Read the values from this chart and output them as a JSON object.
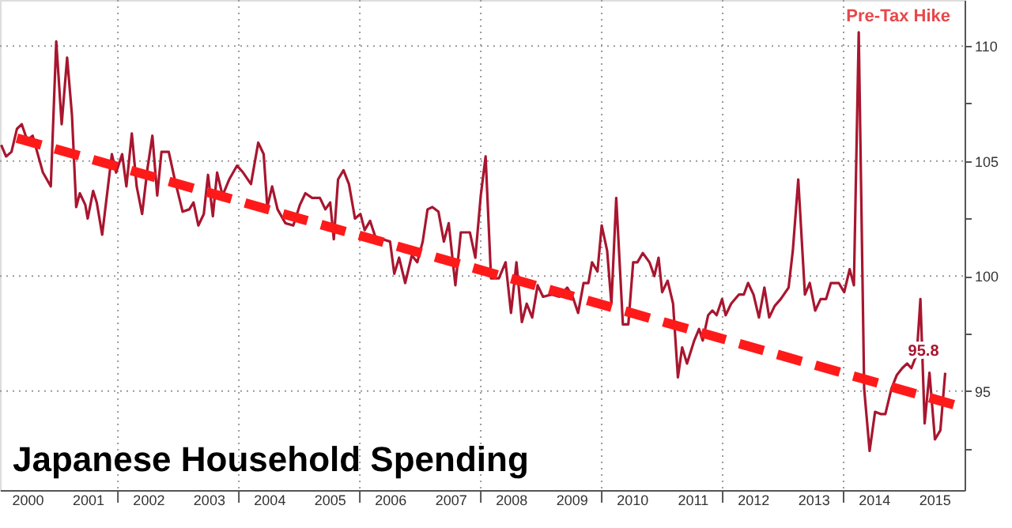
{
  "chart_data": {
    "type": "line",
    "title": "Japanese Household Spending",
    "annotations": [
      {
        "text": "Pre-Tax Hike",
        "x": 2014.25,
        "y": 110.6
      },
      {
        "text": "95.8",
        "x": 2015.68,
        "y": 95.8
      }
    ],
    "xlim": [
      2000.05,
      2016.0
    ],
    "ylim": [
      90.7,
      112
    ],
    "xticks": [
      {
        "value": 2000.5,
        "label": "2000"
      },
      {
        "value": 2001.5,
        "label": "2001"
      },
      {
        "value": 2002.5,
        "label": "2002"
      },
      {
        "value": 2003.5,
        "label": "2003"
      },
      {
        "value": 2004.5,
        "label": "2004"
      },
      {
        "value": 2005.5,
        "label": "2005"
      },
      {
        "value": 2006.5,
        "label": "2006"
      },
      {
        "value": 2007.5,
        "label": "2007"
      },
      {
        "value": 2008.5,
        "label": "2008"
      },
      {
        "value": 2009.5,
        "label": "2009"
      },
      {
        "value": 2010.5,
        "label": "2010"
      },
      {
        "value": 2011.5,
        "label": "2011"
      },
      {
        "value": 2012.5,
        "label": "2012"
      },
      {
        "value": 2013.5,
        "label": "2013"
      },
      {
        "value": 2014.5,
        "label": "2014"
      },
      {
        "value": 2015.5,
        "label": "2015"
      },
      {
        "value": 2002,
        "label": null
      },
      {
        "value": 2004,
        "label": null
      },
      {
        "value": 2006,
        "label": null
      },
      {
        "value": 2008,
        "label": null
      },
      {
        "value": 2010,
        "label": null
      },
      {
        "value": 2012,
        "label": null
      },
      {
        "value": 2014,
        "label": null
      }
    ],
    "yticks": [
      95,
      100,
      105,
      110,
      {
        "value": 92.5,
        "label": null
      },
      {
        "value": 97.5,
        "label": null
      },
      {
        "value": 102.5,
        "label": null
      },
      {
        "value": 107.5,
        "label": null
      }
    ],
    "grid": true,
    "series": [
      {
        "color": "#a8162f",
        "line_style": "solid",
        "x": [
          2000.07,
          2000.15,
          2000.24,
          2000.33,
          2000.41,
          2000.5,
          2000.59,
          2000.76,
          2000.89,
          2000.98,
          2001.07,
          2001.16,
          2001.24,
          2001.31,
          2001.37,
          2001.46,
          2001.5,
          2001.59,
          2001.65,
          2001.74,
          2001.9,
          2001.97,
          2002.07,
          2002.14,
          2002.23,
          2002.31,
          2002.4,
          2002.49,
          2002.57,
          2002.65,
          2002.72,
          2002.84,
          2002.94,
          2003.07,
          2003.18,
          2003.25,
          2003.33,
          2003.42,
          2003.49,
          2003.57,
          2003.64,
          2003.73,
          2003.84,
          2003.97,
          2004.07,
          2004.2,
          2004.32,
          2004.41,
          2004.47,
          2004.55,
          2004.64,
          2004.77,
          2004.9,
          2005.01,
          2005.1,
          2005.21,
          2005.34,
          2005.43,
          2005.51,
          2005.57,
          2005.64,
          2005.73,
          2005.82,
          2005.92,
          2006.01,
          2006.08,
          2006.17,
          2006.27,
          2006.38,
          2006.5,
          2006.57,
          2006.65,
          2006.75,
          2006.86,
          2006.95,
          2007.04,
          2007.12,
          2007.2,
          2007.3,
          2007.39,
          2007.47,
          2007.58,
          2007.67,
          2007.82,
          2007.91,
          2008.0,
          2008.08,
          2008.17,
          2008.3,
          2008.41,
          2008.5,
          2008.59,
          2008.68,
          2008.76,
          2008.85,
          2008.94,
          2009.03,
          2009.17,
          2009.3,
          2009.43,
          2009.52,
          2009.61,
          2009.7,
          2009.78,
          2009.84,
          2009.93,
          2010.0,
          2010.09,
          2010.16,
          2010.24,
          2010.35,
          2010.44,
          2010.52,
          2010.59,
          2010.68,
          2010.79,
          2010.87,
          2010.94,
          2011.0,
          2011.09,
          2011.18,
          2011.26,
          2011.33,
          2011.41,
          2011.53,
          2011.61,
          2011.67,
          2011.76,
          2011.83,
          2011.9,
          2011.99,
          2012.05,
          2012.14,
          2012.27,
          2012.35,
          2012.42,
          2012.51,
          2012.6,
          2012.69,
          2012.77,
          2012.86,
          2012.96,
          2013.09,
          2013.16,
          2013.25,
          2013.36,
          2013.44,
          2013.53,
          2013.62,
          2013.71,
          2013.79,
          2013.92,
          2014.01,
          2014.1,
          2014.17,
          2014.25,
          2014.34,
          2014.43,
          2014.52,
          2014.62,
          2014.69,
          2014.79,
          2014.88,
          2014.97,
          2015.05,
          2015.12,
          2015.21,
          2015.27,
          2015.34,
          2015.42,
          2015.51,
          2015.6,
          2015.68
        ],
        "values": [
          105.7,
          105.2,
          105.4,
          106.4,
          106.6,
          105.9,
          106.1,
          104.5,
          103.9,
          110.2,
          106.6,
          109.5,
          107.0,
          103.0,
          103.6,
          103.1,
          102.5,
          103.7,
          103.2,
          101.8,
          105.3,
          104.5,
          105.3,
          103.9,
          106.2,
          103.9,
          102.7,
          104.7,
          106.1,
          103.5,
          105.4,
          105.4,
          104.2,
          102.8,
          102.9,
          103.2,
          102.2,
          102.7,
          104.4,
          102.6,
          104.5,
          103.5,
          104.2,
          104.8,
          104.5,
          104.0,
          105.8,
          105.3,
          103.0,
          103.9,
          102.9,
          102.3,
          102.2,
          103.1,
          103.6,
          103.4,
          103.4,
          102.9,
          103.2,
          101.6,
          104.2,
          104.6,
          104.0,
          102.5,
          102.7,
          102.0,
          102.4,
          101.6,
          101.6,
          101.5,
          100.1,
          100.8,
          99.7,
          100.9,
          100.6,
          101.5,
          102.9,
          103.0,
          102.8,
          101.5,
          102.3,
          99.6,
          101.9,
          101.9,
          100.8,
          103.5,
          105.2,
          99.9,
          99.9,
          100.6,
          98.4,
          100.6,
          98.0,
          98.8,
          98.2,
          99.6,
          99.1,
          99.2,
          99.1,
          99.5,
          99.1,
          98.4,
          99.7,
          99.7,
          100.6,
          100.2,
          102.2,
          101.1,
          98.8,
          103.4,
          97.9,
          97.9,
          100.6,
          100.6,
          101.0,
          100.6,
          100.0,
          100.8,
          99.3,
          99.8,
          98.8,
          95.6,
          96.9,
          96.2,
          97.2,
          97.7,
          97.2,
          98.3,
          98.5,
          98.3,
          99.0,
          98.3,
          98.8,
          99.2,
          99.2,
          99.7,
          99.2,
          98.2,
          99.5,
          98.2,
          98.7,
          99.0,
          99.5,
          101.1,
          104.2,
          99.2,
          99.7,
          98.5,
          99.0,
          99.0,
          99.7,
          99.7,
          99.3,
          100.3,
          99.6,
          110.6,
          95.1,
          92.4,
          94.1,
          94.0,
          94.0,
          95.1,
          95.7,
          96.0,
          96.2,
          96.0,
          96.6,
          99.0,
          93.6,
          95.8,
          92.9,
          93.3,
          95.8
        ]
      },
      {
        "color": "#ff1a1a",
        "line_style": "dashed",
        "x": [
          2000.33,
          2015.84
        ],
        "values": [
          106.0,
          94.4
        ]
      }
    ]
  }
}
